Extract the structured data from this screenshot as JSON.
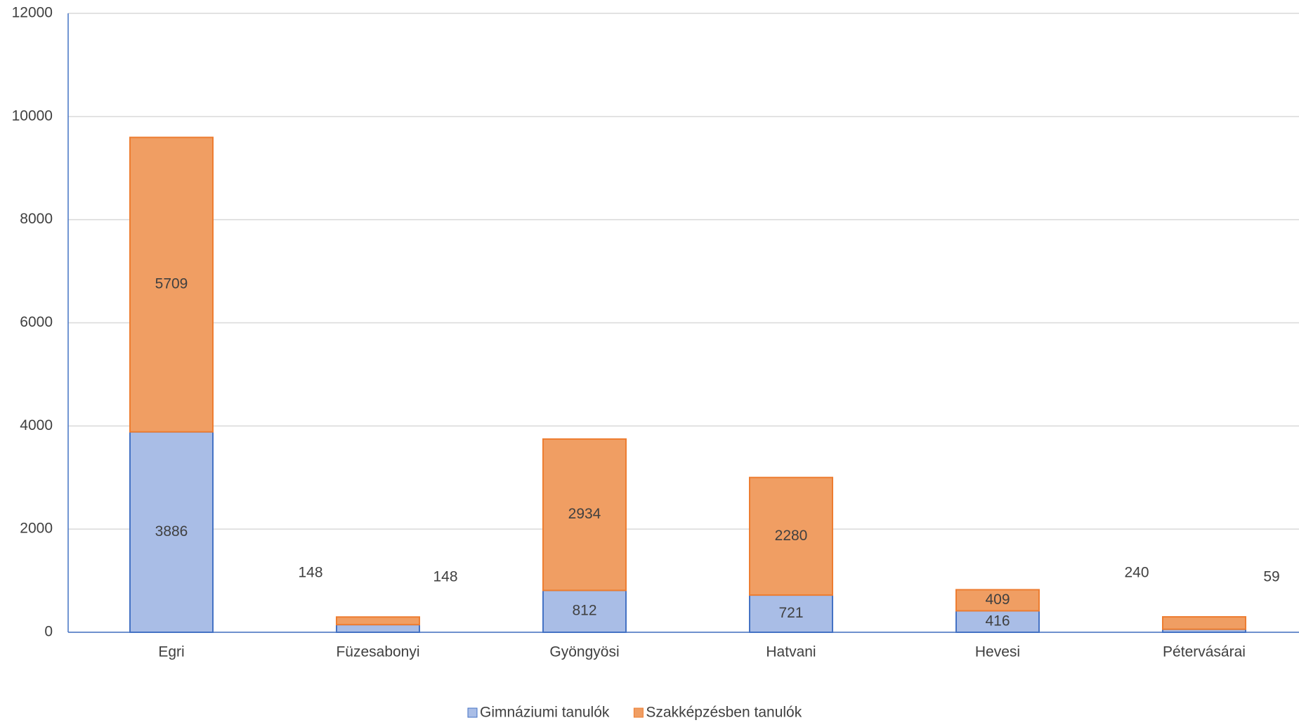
{
  "chart_data": {
    "type": "stacked_bar",
    "categories": [
      "Egri",
      "Füzesabonyi",
      "Gyöngyösi",
      "Hatvani",
      "Hevesi",
      "Pétervásárai"
    ],
    "series": [
      {
        "name": "Gimnáziumi tanulók",
        "color": "#a9bde6",
        "values": [
          3886,
          148,
          812,
          721,
          416,
          59
        ]
      },
      {
        "name": "Szakképzésben tanulók",
        "color": "#f09e63",
        "values": [
          5709,
          148,
          2934,
          2280,
          409,
          240
        ]
      }
    ],
    "ylim": [
      0,
      12000
    ],
    "yticks": [
      0,
      2000,
      4000,
      6000,
      8000,
      10000,
      12000
    ],
    "grid": true,
    "legend": "bottom"
  }
}
